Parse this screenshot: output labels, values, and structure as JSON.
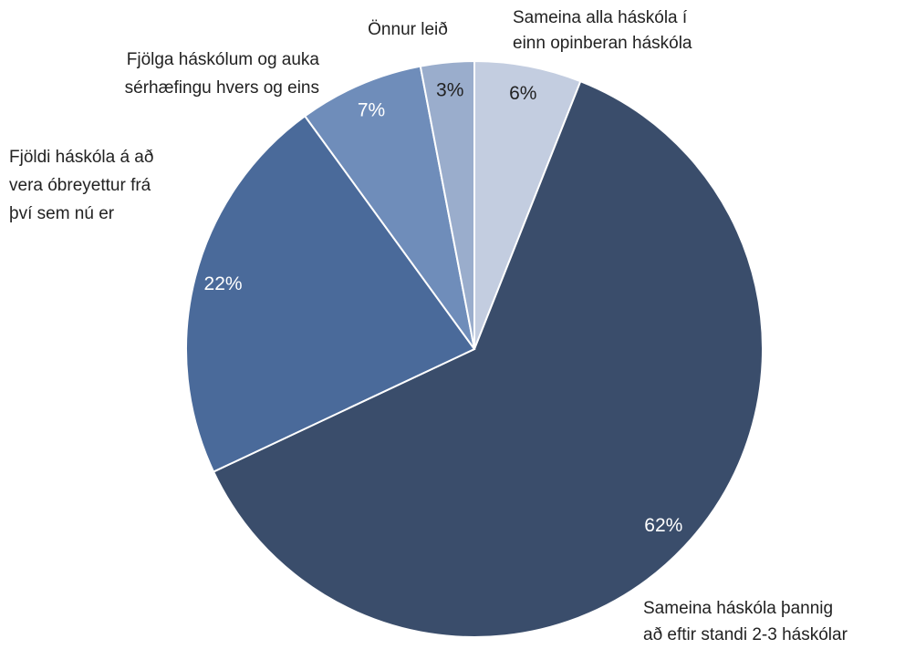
{
  "chart_data": {
    "type": "pie",
    "categories": [
      "Sameina alla háskóla í\neinn opinberan háskóla",
      "Sameina háskóla þannig\nað eftir standi 2-3 háskólar",
      "Fjöldi háskóla á að\nvera óbreyettur frá\nþví sem nú er",
      "Fjölga háskólum og auka\nsérhæfingu hvers og eins",
      "Önnur leið"
    ],
    "values": [
      6,
      62,
      22,
      7,
      3
    ],
    "value_labels": [
      "6%",
      "62%",
      "22%",
      "7%",
      "3%"
    ],
    "colors": [
      "#c3cde0",
      "#3a4d6b",
      "#4a6a9a",
      "#6f8dba",
      "#9aadcc"
    ]
  }
}
